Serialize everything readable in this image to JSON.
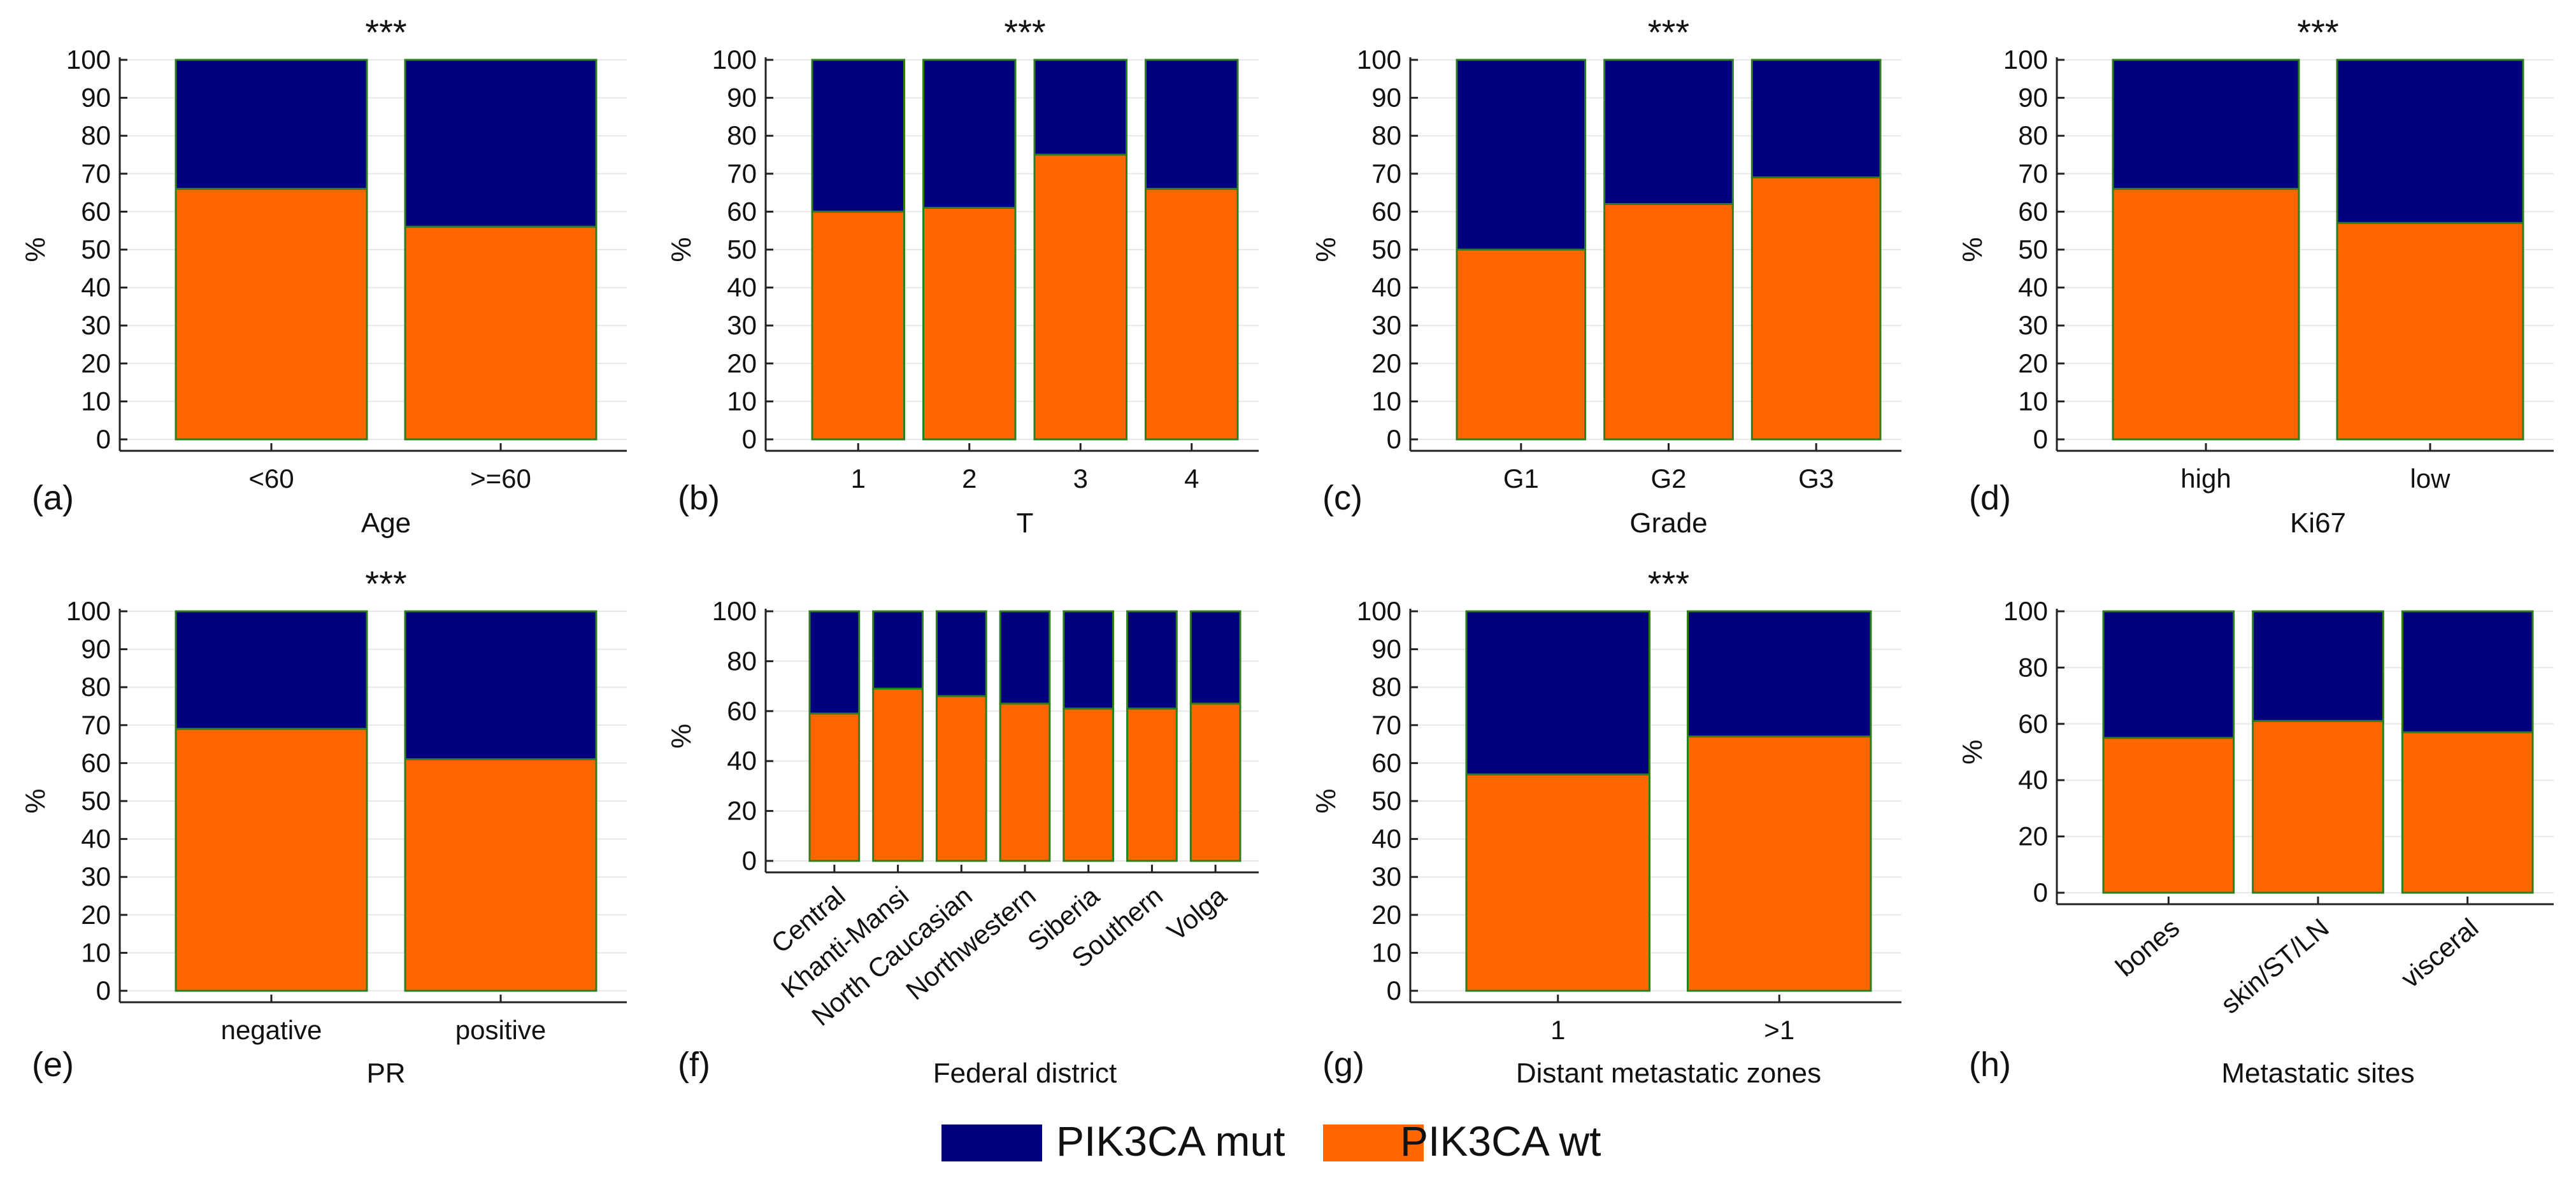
{
  "colors": {
    "mut": "#00007f",
    "wt": "#ff6600",
    "bar_edge": "#2e7d1f",
    "grid": "#e8e8e8",
    "axis": "#222222"
  },
  "legend": {
    "mut_label": "PIK3CA mut",
    "wt_label": "PIK3CA wt"
  },
  "chart_data": [
    {
      "type": "bar",
      "stacked": true,
      "panel": "(a)",
      "sig": "***",
      "xlabel": "Age",
      "ylabel": "%",
      "ylim": [
        0,
        100
      ],
      "yticks": [
        0,
        10,
        20,
        30,
        40,
        50,
        60,
        70,
        80,
        90,
        100
      ],
      "categories": [
        "<60",
        ">=60"
      ],
      "rotate_labels": false,
      "series": [
        {
          "name": "PIK3CA wt",
          "values": [
            66,
            56
          ]
        },
        {
          "name": "PIK3CA mut",
          "values": [
            34,
            44
          ]
        }
      ]
    },
    {
      "type": "bar",
      "stacked": true,
      "panel": "(b)",
      "sig": "***",
      "xlabel": "T",
      "ylabel": "%",
      "ylim": [
        0,
        100
      ],
      "yticks": [
        0,
        10,
        20,
        30,
        40,
        50,
        60,
        70,
        80,
        90,
        100
      ],
      "categories": [
        "1",
        "2",
        "3",
        "4"
      ],
      "rotate_labels": false,
      "series": [
        {
          "name": "PIK3CA wt",
          "values": [
            60,
            61,
            75,
            66
          ]
        },
        {
          "name": "PIK3CA mut",
          "values": [
            40,
            39,
            25,
            34
          ]
        }
      ]
    },
    {
      "type": "bar",
      "stacked": true,
      "panel": "(c)",
      "sig": "***",
      "xlabel": "Grade",
      "ylabel": "%",
      "ylim": [
        0,
        100
      ],
      "yticks": [
        0,
        10,
        20,
        30,
        40,
        50,
        60,
        70,
        80,
        90,
        100
      ],
      "categories": [
        "G1",
        "G2",
        "G3"
      ],
      "rotate_labels": false,
      "series": [
        {
          "name": "PIK3CA wt",
          "values": [
            50,
            62,
            69
          ]
        },
        {
          "name": "PIK3CA mut",
          "values": [
            50,
            38,
            31
          ]
        }
      ]
    },
    {
      "type": "bar",
      "stacked": true,
      "panel": "(d)",
      "sig": "***",
      "xlabel": "Ki67",
      "ylabel": "%",
      "ylim": [
        0,
        100
      ],
      "yticks": [
        0,
        10,
        20,
        30,
        40,
        50,
        60,
        70,
        80,
        90,
        100
      ],
      "categories": [
        "high",
        "low"
      ],
      "rotate_labels": false,
      "series": [
        {
          "name": "PIK3CA wt",
          "values": [
            66,
            57
          ]
        },
        {
          "name": "PIK3CA mut",
          "values": [
            34,
            43
          ]
        }
      ]
    },
    {
      "type": "bar",
      "stacked": true,
      "panel": "(e)",
      "sig": "***",
      "xlabel": "PR",
      "ylabel": "%",
      "ylim": [
        0,
        100
      ],
      "yticks": [
        0,
        10,
        20,
        30,
        40,
        50,
        60,
        70,
        80,
        90,
        100
      ],
      "categories": [
        "negative",
        "positive"
      ],
      "rotate_labels": false,
      "series": [
        {
          "name": "PIK3CA wt",
          "values": [
            69,
            61
          ]
        },
        {
          "name": "PIK3CA mut",
          "values": [
            31,
            39
          ]
        }
      ]
    },
    {
      "type": "bar",
      "stacked": true,
      "panel": "(f)",
      "sig": "",
      "xlabel": "Federal district",
      "ylabel": "%",
      "ylim": [
        0,
        100
      ],
      "yticks": [
        0,
        20,
        40,
        60,
        80,
        100
      ],
      "categories": [
        "Central",
        "Khanti-Mansi",
        "North Caucasian",
        "Northwestern",
        "Siberia",
        "Southern",
        "Volga"
      ],
      "rotate_labels": true,
      "series": [
        {
          "name": "PIK3CA wt",
          "values": [
            59,
            69,
            66,
            63,
            61,
            61,
            63
          ]
        },
        {
          "name": "PIK3CA mut",
          "values": [
            41,
            31,
            34,
            37,
            39,
            39,
            37
          ]
        }
      ]
    },
    {
      "type": "bar",
      "stacked": true,
      "panel": "(g)",
      "sig": "***",
      "xlabel": "Distant metastatic zones",
      "ylabel": "%",
      "ylim": [
        0,
        100
      ],
      "yticks": [
        0,
        10,
        20,
        30,
        40,
        50,
        60,
        70,
        80,
        90,
        100
      ],
      "categories": [
        "1",
        ">1"
      ],
      "rotate_labels": false,
      "series": [
        {
          "name": "PIK3CA wt",
          "values": [
            57,
            67
          ]
        },
        {
          "name": "PIK3CA mut",
          "values": [
            43,
            33
          ]
        }
      ]
    },
    {
      "type": "bar",
      "stacked": true,
      "panel": "(h)",
      "sig": "",
      "xlabel": "Metastatic sites",
      "ylabel": "%",
      "ylim": [
        0,
        100
      ],
      "yticks": [
        0,
        20,
        40,
        60,
        80,
        100
      ],
      "categories": [
        "bones",
        "skin/ST/LN",
        "visceral"
      ],
      "rotate_labels": true,
      "series": [
        {
          "name": "PIK3CA wt",
          "values": [
            55,
            61,
            57
          ]
        },
        {
          "name": "PIK3CA mut",
          "values": [
            45,
            39,
            43
          ]
        }
      ]
    }
  ]
}
